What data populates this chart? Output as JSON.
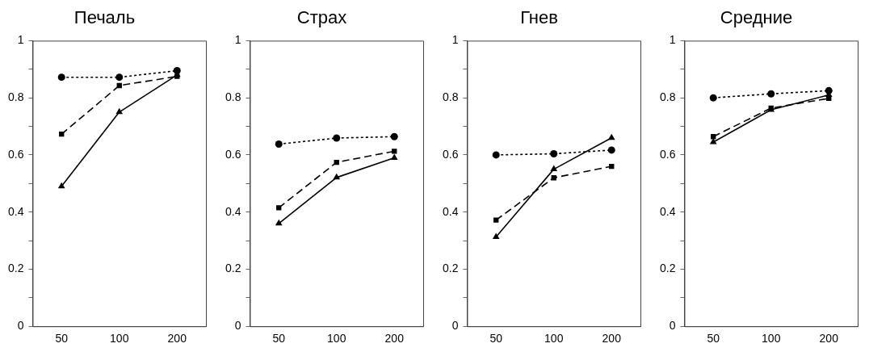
{
  "chart_data": [
    {
      "type": "line",
      "title": "Печаль",
      "categories": [
        "50",
        "100",
        "200"
      ],
      "ylim": [
        0,
        1
      ],
      "yticks": [
        0,
        {
          "value": 0.1,
          "label": null
        },
        0.2,
        {
          "value": 0.3,
          "label": null
        },
        0.4,
        {
          "value": 0.5,
          "label": null
        },
        0.6,
        {
          "value": 0.7,
          "label": null
        },
        0.8,
        {
          "value": 0.9,
          "label": null
        },
        1
      ],
      "grid": false,
      "legend": false,
      "series": [
        {
          "color": "#000000",
          "marker": "circle",
          "line_style": "dotted",
          "values": [
            0.872,
            0.872,
            0.895
          ]
        },
        {
          "color": "#000000",
          "marker": "square",
          "line_style": "dashed",
          "values": [
            0.673,
            0.843,
            0.875
          ]
        },
        {
          "color": "#000000",
          "marker": "triangle",
          "line_style": "solid",
          "values": [
            0.49,
            0.75,
            0.88
          ]
        }
      ]
    },
    {
      "type": "line",
      "title": "Страх",
      "categories": [
        "50",
        "100",
        "200"
      ],
      "ylim": [
        0,
        1
      ],
      "yticks": [
        0,
        {
          "value": 0.1,
          "label": null
        },
        0.2,
        {
          "value": 0.3,
          "label": null
        },
        0.4,
        {
          "value": 0.5,
          "label": null
        },
        0.6,
        {
          "value": 0.7,
          "label": null
        },
        0.8,
        {
          "value": 0.9,
          "label": null
        },
        1
      ],
      "grid": false,
      "legend": false,
      "series": [
        {
          "color": "#000000",
          "marker": "circle",
          "line_style": "dotted",
          "values": [
            0.638,
            0.659,
            0.664
          ]
        },
        {
          "color": "#000000",
          "marker": "square",
          "line_style": "dashed",
          "values": [
            0.415,
            0.574,
            0.613
          ]
        },
        {
          "color": "#000000",
          "marker": "triangle",
          "line_style": "solid",
          "values": [
            0.36,
            0.521,
            0.59
          ]
        }
      ]
    },
    {
      "type": "line",
      "title": "Гнев",
      "categories": [
        "50",
        "100",
        "200"
      ],
      "ylim": [
        0,
        1
      ],
      "yticks": [
        0,
        {
          "value": 0.1,
          "label": null
        },
        0.2,
        {
          "value": 0.3,
          "label": null
        },
        0.4,
        {
          "value": 0.5,
          "label": null
        },
        0.6,
        {
          "value": 0.7,
          "label": null
        },
        0.8,
        {
          "value": 0.9,
          "label": null
        },
        1
      ],
      "grid": false,
      "legend": false,
      "series": [
        {
          "color": "#000000",
          "marker": "circle",
          "line_style": "dotted",
          "values": [
            0.6,
            0.604,
            0.617
          ]
        },
        {
          "color": "#000000",
          "marker": "square",
          "line_style": "dashed",
          "values": [
            0.372,
            0.52,
            0.56
          ]
        },
        {
          "color": "#000000",
          "marker": "triangle",
          "line_style": "solid",
          "values": [
            0.313,
            0.55,
            0.66
          ]
        }
      ]
    },
    {
      "type": "line",
      "title": "Средние",
      "categories": [
        "50",
        "100",
        "200"
      ],
      "ylim": [
        0,
        1
      ],
      "yticks": [
        0,
        {
          "value": 0.1,
          "label": null
        },
        0.2,
        {
          "value": 0.3,
          "label": null
        },
        0.4,
        {
          "value": 0.5,
          "label": null
        },
        0.6,
        {
          "value": 0.7,
          "label": null
        },
        0.8,
        {
          "value": 0.9,
          "label": null
        },
        1
      ],
      "grid": false,
      "legend": false,
      "series": [
        {
          "color": "#000000",
          "marker": "circle",
          "line_style": "dotted",
          "values": [
            0.8,
            0.814,
            0.825
          ]
        },
        {
          "color": "#000000",
          "marker": "square",
          "line_style": "dashed",
          "values": [
            0.664,
            0.764,
            0.798
          ]
        },
        {
          "color": "#000000",
          "marker": "triangle",
          "line_style": "solid",
          "values": [
            0.645,
            0.758,
            0.81
          ]
        }
      ]
    }
  ]
}
